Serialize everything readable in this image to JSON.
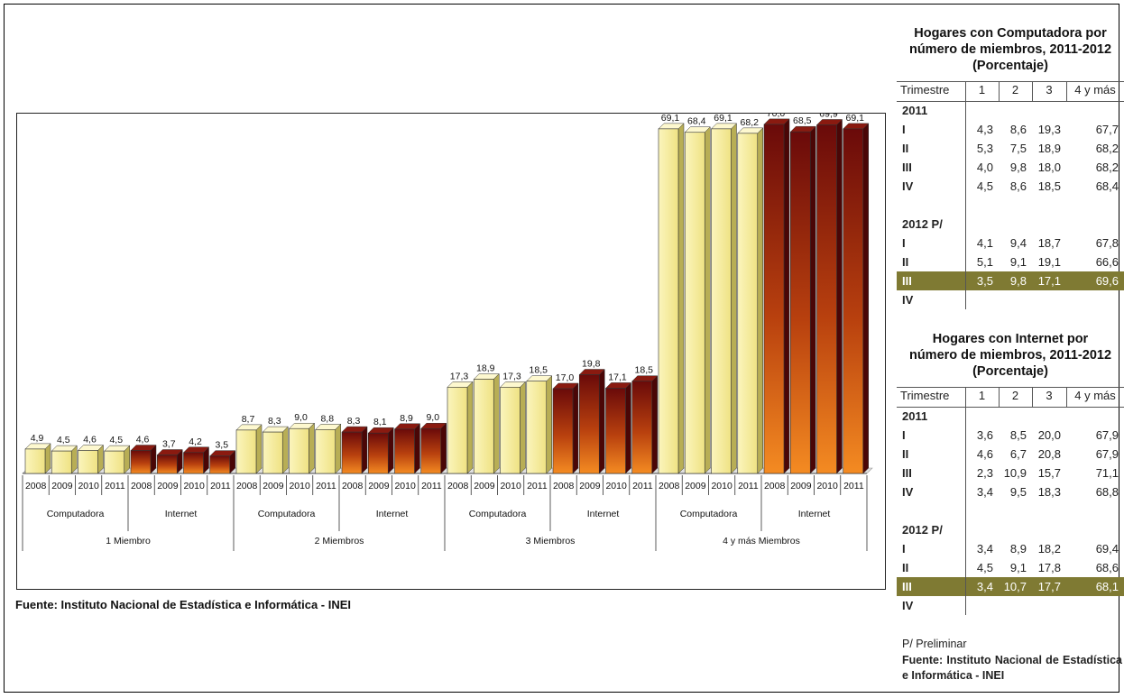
{
  "colors": {
    "computadora_bar": "#f5eb94",
    "internet_bar_top": "#6a0a0a",
    "internet_bar_bottom": "#f48b22",
    "highlight_row": "#7f7a33"
  },
  "chart_data": {
    "type": "bar",
    "categories": [
      "1 Miembro",
      "2 Miembros",
      "3 Miembros",
      "4 y más Miembros"
    ],
    "subgroups": [
      "Computadora",
      "Internet"
    ],
    "years": [
      "2008",
      "2009",
      "2010",
      "2011"
    ],
    "series": [
      {
        "name": "Computadora",
        "values": [
          [
            4.9,
            4.5,
            4.6,
            4.5
          ],
          [
            8.7,
            8.3,
            9.0,
            8.8
          ],
          [
            17.3,
            18.9,
            17.3,
            18.5
          ],
          [
            69.1,
            68.4,
            69.1,
            68.2
          ]
        ]
      },
      {
        "name": "Internet",
        "values": [
          [
            4.6,
            3.7,
            4.2,
            3.5
          ],
          [
            8.3,
            8.1,
            8.9,
            9.0
          ],
          [
            17.0,
            19.8,
            17.1,
            18.5
          ],
          [
            70.0,
            68.5,
            69.9,
            69.1
          ]
        ]
      }
    ],
    "value_labels": [
      [
        "4,9",
        "4,5",
        "4,6",
        "4,5",
        "4,6",
        "3,7",
        "4,2",
        "3,5"
      ],
      [
        "8,7",
        "8,3",
        "9,0",
        "8,8",
        "8,3",
        "8,1",
        "8,9",
        "9,0"
      ],
      [
        "17,3",
        "18,9",
        "17,3",
        "18,5",
        "17,0",
        "19,8",
        "17,1",
        "18,5"
      ],
      [
        "69,1",
        "68,4",
        "69,1",
        "68,2",
        "70,0",
        "68,5",
        "69,9",
        "69,1"
      ]
    ],
    "ylim": [
      0,
      75
    ],
    "grid": false,
    "title": "",
    "xlabel": "",
    "ylabel": ""
  },
  "source_main": "Fuente: Instituto Nacional de Estadística e Informática - INEI",
  "table1": {
    "title_line1": "Hogares con Computadora  por",
    "title_line2": "número de miembros, 2011-2012",
    "title_line3": "(Porcentaje)",
    "header": [
      "Trimestre",
      "1",
      "2",
      "3",
      "4 y más"
    ],
    "rows": [
      {
        "label": "2011",
        "values": [
          "",
          "",
          "",
          ""
        ]
      },
      {
        "label": "I",
        "values": [
          "4,3",
          "8,6",
          "19,3",
          "67,7"
        ]
      },
      {
        "label": "II",
        "values": [
          "5,3",
          "7,5",
          "18,9",
          "68,2"
        ]
      },
      {
        "label": "III",
        "values": [
          "4,0",
          "9,8",
          "18,0",
          "68,2"
        ]
      },
      {
        "label": "IV",
        "values": [
          "4,5",
          "8,6",
          "18,5",
          "68,4"
        ]
      },
      {
        "label": "",
        "values": [
          "",
          "",
          "",
          ""
        ]
      },
      {
        "label": "2012 P/",
        "values": [
          "",
          "",
          "",
          ""
        ]
      },
      {
        "label": "I",
        "values": [
          "4,1",
          "9,4",
          "18,7",
          "67,8"
        ]
      },
      {
        "label": "II",
        "values": [
          "5,1",
          "9,1",
          "19,1",
          "66,6"
        ]
      },
      {
        "label": "III",
        "values": [
          "3,5",
          "9,8",
          "17,1",
          "69,6"
        ],
        "highlight": true
      },
      {
        "label": "IV",
        "values": [
          "",
          "",
          "",
          ""
        ]
      }
    ]
  },
  "table2": {
    "title_line1": "Hogares con Internet  por",
    "title_line2": "número de miembros, 2011-2012",
    "title_line3": "(Porcentaje)",
    "header": [
      "Trimestre",
      "1",
      "2",
      "3",
      "4 y más"
    ],
    "rows": [
      {
        "label": "2011",
        "values": [
          "",
          "",
          "",
          ""
        ]
      },
      {
        "label": "I",
        "values": [
          "3,6",
          "8,5",
          "20,0",
          "67,9"
        ]
      },
      {
        "label": "II",
        "values": [
          "4,6",
          "6,7",
          "20,8",
          "67,9"
        ]
      },
      {
        "label": "III",
        "values": [
          "2,3",
          "10,9",
          "15,7",
          "71,1"
        ]
      },
      {
        "label": "IV",
        "values": [
          "3,4",
          "9,5",
          "18,3",
          "68,8"
        ]
      },
      {
        "label": "",
        "values": [
          "",
          "",
          "",
          ""
        ]
      },
      {
        "label": "2012 P/",
        "values": [
          "",
          "",
          "",
          ""
        ]
      },
      {
        "label": "I",
        "values": [
          "3,4",
          "8,9",
          "18,2",
          "69,4"
        ]
      },
      {
        "label": "II",
        "values": [
          "4,5",
          "9,1",
          "17,8",
          "68,6"
        ]
      },
      {
        "label": "III",
        "values": [
          "3,4",
          "10,7",
          "17,7",
          "68,1"
        ],
        "highlight": true
      },
      {
        "label": "IV",
        "values": [
          "",
          "",
          "",
          ""
        ]
      }
    ],
    "note": "P/ Preliminar",
    "source": "Fuente: Instituto Nacional de Estadística e Informática - INEI"
  }
}
